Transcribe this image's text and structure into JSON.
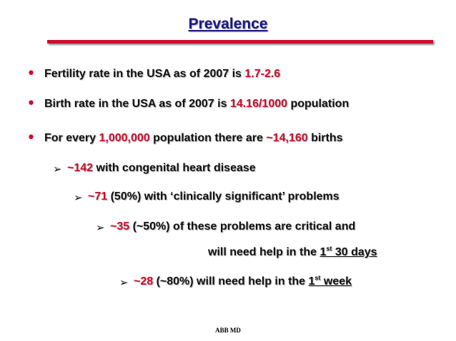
{
  "title": "Prevalence",
  "colors": {
    "title": "#1a1a7e",
    "accent": "#c8102e",
    "text": "#111111"
  },
  "bullets": [
    {
      "pre": "Fertility rate in the USA as of 2007 is ",
      "val": "1.7-2.6",
      "post": ""
    },
    {
      "pre": "Birth rate in the USA as of 2007 is ",
      "val": "14.16/1000",
      "post": " population"
    },
    {
      "pre": "For every ",
      "val": "1,000,000",
      "mid": " population there are ",
      "val2": "~14,160",
      "post": " births"
    }
  ],
  "sub": [
    {
      "val": "~142",
      "text": " with congenital heart disease"
    },
    {
      "val": "~71",
      "text": " (50%) with ‘clinically significant’ problems"
    },
    {
      "val": "~35",
      "text": " (~50%) of these problems are critical and",
      "cont_pre": "will need help in the ",
      "cont_num": "1",
      "cont_sup": "st",
      "cont_post": " 30 days"
    },
    {
      "val": "~28",
      "text": " (~80%) will need help in the ",
      "num": "1",
      "sup": "st",
      "post": " week"
    }
  ],
  "footer": "ABB MD"
}
